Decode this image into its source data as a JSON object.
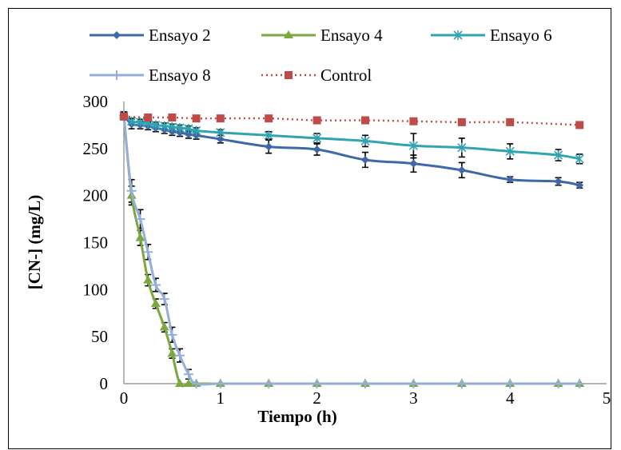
{
  "chart_data": {
    "type": "line",
    "xlabel": "Tiempo (h)",
    "ylabel": "[CN-] (mg/L)",
    "xlim": [
      0,
      5
    ],
    "ylim": [
      0,
      300
    ],
    "x_ticks": [
      "0",
      "1",
      "2",
      "3",
      "4",
      "5"
    ],
    "y_ticks": [
      "0",
      "50",
      "100",
      "150",
      "200",
      "250",
      "300"
    ],
    "grid": false,
    "legend_position": "top",
    "series": [
      {
        "name": "Ensayo 2",
        "color": "#3f68a8",
        "marker": "diamond",
        "line": "solid",
        "x": [
          0,
          0.08,
          0.17,
          0.25,
          0.33,
          0.42,
          0.5,
          0.58,
          0.67,
          0.75,
          1,
          1.5,
          2,
          2.5,
          3,
          3.5,
          4,
          4.5,
          4.72
        ],
        "y": [
          285,
          276,
          275,
          274,
          272,
          270,
          268,
          267,
          265,
          264,
          260,
          252,
          249,
          238,
          234,
          227,
          217,
          215,
          211
        ],
        "err": [
          4,
          5,
          4,
          4,
          4,
          4,
          4,
          4,
          4,
          4,
          4,
          7,
          6,
          8,
          9,
          8,
          3,
          4,
          3
        ]
      },
      {
        "name": "Ensayo 4",
        "color": "#7ba83e",
        "marker": "triangle",
        "line": "solid",
        "x": [
          0,
          0.08,
          0.17,
          0.25,
          0.33,
          0.42,
          0.5,
          0.58,
          0.67,
          0.75,
          1,
          1.5,
          2,
          2.5,
          3,
          3.5,
          4,
          4.5,
          4.72
        ],
        "y": [
          285,
          200,
          155,
          110,
          85,
          60,
          32,
          0,
          0,
          0,
          0,
          0,
          0,
          0,
          0,
          0,
          0,
          0,
          0
        ],
        "err": [
          0,
          10,
          8,
          6,
          5,
          5,
          5,
          0,
          0,
          0,
          0,
          0,
          0,
          0,
          0,
          0,
          0,
          0,
          0
        ]
      },
      {
        "name": "Ensayo 6",
        "color": "#31a3b1",
        "marker": "star",
        "line": "solid",
        "x": [
          0,
          0.08,
          0.17,
          0.25,
          0.33,
          0.42,
          0.5,
          0.58,
          0.67,
          0.75,
          1,
          1.5,
          2,
          2.5,
          3,
          3.5,
          4,
          4.5,
          4.72
        ],
        "y": [
          285,
          279,
          278,
          277,
          275,
          274,
          273,
          272,
          271,
          269,
          267,
          264,
          261,
          258,
          253,
          251,
          247,
          243,
          239
        ],
        "err": [
          3,
          3,
          3,
          3,
          3,
          3,
          3,
          3,
          3,
          3,
          3,
          4,
          5,
          6,
          13,
          10,
          8,
          6,
          5
        ]
      },
      {
        "name": "Ensayo 8",
        "color": "#94aed8",
        "marker": "plus",
        "line": "solid",
        "x": [
          0,
          0.08,
          0.17,
          0.25,
          0.33,
          0.42,
          0.5,
          0.58,
          0.67,
          0.75,
          1,
          1.5,
          2,
          2.5,
          3,
          3.5,
          4,
          4.5,
          4.72
        ],
        "y": [
          285,
          205,
          175,
          140,
          105,
          90,
          52,
          30,
          10,
          0,
          0,
          0,
          0,
          0,
          0,
          0,
          0,
          0,
          0
        ],
        "err": [
          0,
          12,
          10,
          8,
          7,
          6,
          8,
          7,
          5,
          0,
          0,
          0,
          0,
          0,
          0,
          0,
          0,
          0,
          0
        ]
      },
      {
        "name": "Control",
        "color": "#be4b48",
        "marker": "square",
        "line": "dotted",
        "x": [
          0,
          0.25,
          0.5,
          0.75,
          1,
          1.5,
          2,
          2.5,
          3,
          3.5,
          4,
          4.72
        ],
        "y": [
          284,
          283,
          283,
          282,
          282,
          282,
          280,
          280,
          279,
          278,
          278,
          275
        ],
        "err": [
          0,
          0,
          0,
          0,
          0,
          0,
          0,
          0,
          0,
          0,
          0,
          0
        ]
      }
    ]
  }
}
